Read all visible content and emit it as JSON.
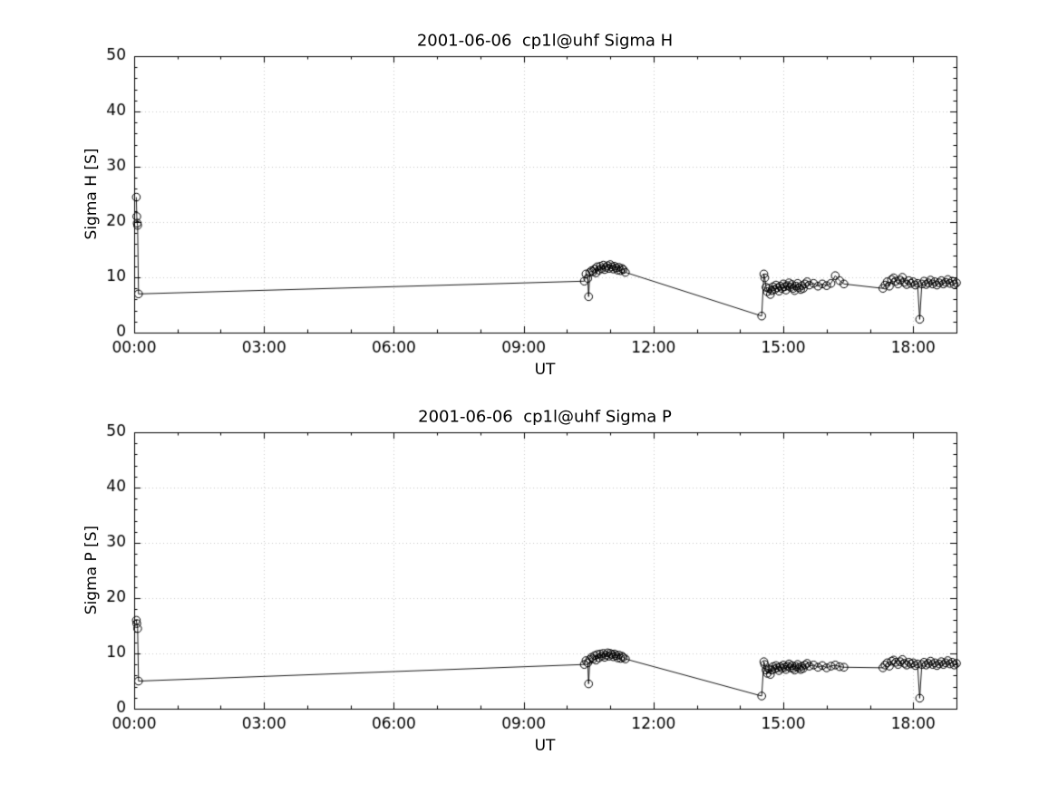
{
  "figure": {
    "background": "#ffffff",
    "axis_color": "#000000",
    "grid_color": "#c8c8c8",
    "marker_color": "#000000",
    "line_color": "#000000"
  },
  "chart_data": [
    {
      "type": "line",
      "title": "2001-06-06  cp1l@uhf Sigma H",
      "xlabel": "UT",
      "ylabel": "Sigma H [S]",
      "xlim": [
        0,
        19
      ],
      "ylim": [
        0,
        50
      ],
      "xticks": [
        0,
        3,
        6,
        9,
        12,
        15,
        18
      ],
      "xtick_labels": [
        "00:00",
        "03:00",
        "06:00",
        "09:00",
        "12:00",
        "15:00",
        "18:00"
      ],
      "yticks": [
        0,
        10,
        20,
        30,
        40,
        50
      ],
      "ytick_labels": [
        "0",
        "10",
        "20",
        "30",
        "40",
        "50"
      ],
      "grid": true,
      "marker": "open-circle",
      "points": [
        [
          0.05,
          24.5
        ],
        [
          0.06,
          21.0
        ],
        [
          0.07,
          19.8
        ],
        [
          0.08,
          19.4
        ],
        [
          0.1,
          7.0
        ],
        [
          10.4,
          9.3
        ],
        [
          10.44,
          10.6
        ],
        [
          10.48,
          9.8
        ],
        [
          10.5,
          6.5
        ],
        [
          10.53,
          10.9
        ],
        [
          10.57,
          11.2
        ],
        [
          10.6,
          11.0
        ],
        [
          10.64,
          11.5
        ],
        [
          10.67,
          10.8
        ],
        [
          10.7,
          11.9
        ],
        [
          10.74,
          11.3
        ],
        [
          10.77,
          12.0
        ],
        [
          10.8,
          11.6
        ],
        [
          10.84,
          12.2
        ],
        [
          10.87,
          11.4
        ],
        [
          10.9,
          11.8
        ],
        [
          10.94,
          12.1
        ],
        [
          10.97,
          11.6
        ],
        [
          11.0,
          12.3
        ],
        [
          11.04,
          11.9
        ],
        [
          11.07,
          11.5
        ],
        [
          11.1,
          12.0
        ],
        [
          11.14,
          11.7
        ],
        [
          11.17,
          11.3
        ],
        [
          11.2,
          11.8
        ],
        [
          11.24,
          11.2
        ],
        [
          11.27,
          11.6
        ],
        [
          11.3,
          11.4
        ],
        [
          11.35,
          10.9
        ],
        [
          14.5,
          3.0
        ],
        [
          14.55,
          10.6
        ],
        [
          14.57,
          9.9
        ],
        [
          14.6,
          8.2
        ],
        [
          14.63,
          7.4
        ],
        [
          14.66,
          8.0
        ],
        [
          14.7,
          6.9
        ],
        [
          14.73,
          7.6
        ],
        [
          14.76,
          8.3
        ],
        [
          14.8,
          7.8
        ],
        [
          14.83,
          8.6
        ],
        [
          14.86,
          8.1
        ],
        [
          14.9,
          7.5
        ],
        [
          14.93,
          8.4
        ],
        [
          14.96,
          8.0
        ],
        [
          15.0,
          8.8
        ],
        [
          15.03,
          8.3
        ],
        [
          15.06,
          7.7
        ],
        [
          15.1,
          8.5
        ],
        [
          15.13,
          9.0
        ],
        [
          15.16,
          8.2
        ],
        [
          15.2,
          8.7
        ],
        [
          15.23,
          8.0
        ],
        [
          15.26,
          7.6
        ],
        [
          15.3,
          8.4
        ],
        [
          15.33,
          8.9
        ],
        [
          15.36,
          8.1
        ],
        [
          15.4,
          7.8
        ],
        [
          15.43,
          8.5
        ],
        [
          15.46,
          8.0
        ],
        [
          15.5,
          8.8
        ],
        [
          15.55,
          9.2
        ],
        [
          15.6,
          8.6
        ],
        [
          15.7,
          8.9
        ],
        [
          15.8,
          8.4
        ],
        [
          15.9,
          8.8
        ],
        [
          16.0,
          8.5
        ],
        [
          16.1,
          8.9
        ],
        [
          16.2,
          10.3
        ],
        [
          16.3,
          9.4
        ],
        [
          16.4,
          8.8
        ],
        [
          17.3,
          8.0
        ],
        [
          17.35,
          8.6
        ],
        [
          17.4,
          9.2
        ],
        [
          17.45,
          8.4
        ],
        [
          17.5,
          9.6
        ],
        [
          17.55,
          9.9
        ],
        [
          17.6,
          9.3
        ],
        [
          17.65,
          8.8
        ],
        [
          17.7,
          9.5
        ],
        [
          17.75,
          10.0
        ],
        [
          17.8,
          9.1
        ],
        [
          17.85,
          8.7
        ],
        [
          17.9,
          9.4
        ],
        [
          17.95,
          8.9
        ],
        [
          18.0,
          9.2
        ],
        [
          18.05,
          8.6
        ],
        [
          18.1,
          8.9
        ],
        [
          18.15,
          2.4
        ],
        [
          18.2,
          8.8
        ],
        [
          18.25,
          9.3
        ],
        [
          18.3,
          8.7
        ],
        [
          18.35,
          9.0
        ],
        [
          18.4,
          9.5
        ],
        [
          18.45,
          8.8
        ],
        [
          18.5,
          9.2
        ],
        [
          18.55,
          8.6
        ],
        [
          18.6,
          9.0
        ],
        [
          18.65,
          9.4
        ],
        [
          18.7,
          8.8
        ],
        [
          18.75,
          9.1
        ],
        [
          18.8,
          9.6
        ],
        [
          18.85,
          8.9
        ],
        [
          18.9,
          9.3
        ],
        [
          18.95,
          8.7
        ],
        [
          19.0,
          9.0
        ]
      ]
    },
    {
      "type": "line",
      "title": "2001-06-06  cp1l@uhf Sigma P",
      "xlabel": "UT",
      "ylabel": "Sigma P [S]",
      "xlim": [
        0,
        19
      ],
      "ylim": [
        0,
        50
      ],
      "xticks": [
        0,
        3,
        6,
        9,
        12,
        15,
        18
      ],
      "xtick_labels": [
        "00:00",
        "03:00",
        "06:00",
        "09:00",
        "12:00",
        "15:00",
        "18:00"
      ],
      "yticks": [
        0,
        10,
        20,
        30,
        40,
        50
      ],
      "ytick_labels": [
        "0",
        "10",
        "20",
        "30",
        "40",
        "50"
      ],
      "grid": true,
      "marker": "open-circle",
      "points": [
        [
          0.05,
          16.0
        ],
        [
          0.06,
          15.4
        ],
        [
          0.08,
          14.5
        ],
        [
          0.1,
          5.0
        ],
        [
          10.4,
          8.0
        ],
        [
          10.44,
          8.7
        ],
        [
          10.48,
          8.3
        ],
        [
          10.5,
          4.5
        ],
        [
          10.53,
          8.9
        ],
        [
          10.57,
          9.3
        ],
        [
          10.6,
          9.0
        ],
        [
          10.64,
          9.6
        ],
        [
          10.67,
          8.8
        ],
        [
          10.7,
          9.8
        ],
        [
          10.74,
          9.2
        ],
        [
          10.77,
          9.9
        ],
        [
          10.8,
          9.5
        ],
        [
          10.84,
          10.0
        ],
        [
          10.87,
          9.3
        ],
        [
          10.9,
          9.7
        ],
        [
          10.94,
          10.1
        ],
        [
          10.97,
          9.5
        ],
        [
          11.0,
          10.0
        ],
        [
          11.04,
          9.8
        ],
        [
          11.07,
          9.4
        ],
        [
          11.1,
          9.9
        ],
        [
          11.14,
          9.6
        ],
        [
          11.17,
          9.2
        ],
        [
          11.2,
          9.7
        ],
        [
          11.24,
          9.1
        ],
        [
          11.27,
          9.5
        ],
        [
          11.3,
          9.3
        ],
        [
          11.35,
          9.0
        ],
        [
          14.5,
          2.3
        ],
        [
          14.55,
          8.5
        ],
        [
          14.57,
          8.0
        ],
        [
          14.6,
          7.0
        ],
        [
          14.63,
          6.4
        ],
        [
          14.66,
          7.2
        ],
        [
          14.7,
          6.2
        ],
        [
          14.73,
          7.0
        ],
        [
          14.76,
          7.6
        ],
        [
          14.8,
          7.2
        ],
        [
          14.83,
          7.8
        ],
        [
          14.86,
          7.4
        ],
        [
          14.9,
          6.9
        ],
        [
          14.93,
          7.6
        ],
        [
          14.96,
          7.3
        ],
        [
          15.0,
          7.9
        ],
        [
          15.03,
          7.5
        ],
        [
          15.06,
          7.1
        ],
        [
          15.1,
          7.7
        ],
        [
          15.13,
          8.1
        ],
        [
          15.16,
          7.4
        ],
        [
          15.2,
          7.8
        ],
        [
          15.23,
          7.3
        ],
        [
          15.26,
          7.0
        ],
        [
          15.3,
          7.6
        ],
        [
          15.33,
          8.0
        ],
        [
          15.36,
          7.4
        ],
        [
          15.4,
          7.1
        ],
        [
          15.43,
          7.7
        ],
        [
          15.46,
          7.3
        ],
        [
          15.5,
          7.9
        ],
        [
          15.55,
          8.2
        ],
        [
          15.6,
          7.7
        ],
        [
          15.7,
          7.9
        ],
        [
          15.8,
          7.5
        ],
        [
          15.9,
          7.8
        ],
        [
          16.0,
          7.4
        ],
        [
          16.1,
          7.7
        ],
        [
          16.2,
          7.9
        ],
        [
          16.3,
          7.6
        ],
        [
          16.4,
          7.5
        ],
        [
          17.3,
          7.4
        ],
        [
          17.35,
          7.9
        ],
        [
          17.4,
          8.3
        ],
        [
          17.45,
          7.7
        ],
        [
          17.5,
          8.6
        ],
        [
          17.55,
          8.8
        ],
        [
          17.6,
          8.4
        ],
        [
          17.65,
          8.0
        ],
        [
          17.7,
          8.5
        ],
        [
          17.75,
          8.9
        ],
        [
          17.8,
          8.2
        ],
        [
          17.85,
          7.9
        ],
        [
          17.9,
          8.4
        ],
        [
          17.95,
          8.1
        ],
        [
          18.0,
          8.3
        ],
        [
          18.05,
          7.8
        ],
        [
          18.1,
          8.1
        ],
        [
          18.15,
          1.9
        ],
        [
          18.2,
          8.0
        ],
        [
          18.25,
          8.4
        ],
        [
          18.3,
          7.9
        ],
        [
          18.35,
          8.2
        ],
        [
          18.4,
          8.6
        ],
        [
          18.45,
          8.0
        ],
        [
          18.5,
          8.3
        ],
        [
          18.55,
          7.8
        ],
        [
          18.6,
          8.1
        ],
        [
          18.65,
          8.5
        ],
        [
          18.7,
          8.0
        ],
        [
          18.75,
          8.3
        ],
        [
          18.8,
          8.7
        ],
        [
          18.85,
          8.1
        ],
        [
          18.9,
          8.4
        ],
        [
          18.95,
          7.9
        ],
        [
          19.0,
          8.2
        ]
      ]
    }
  ]
}
